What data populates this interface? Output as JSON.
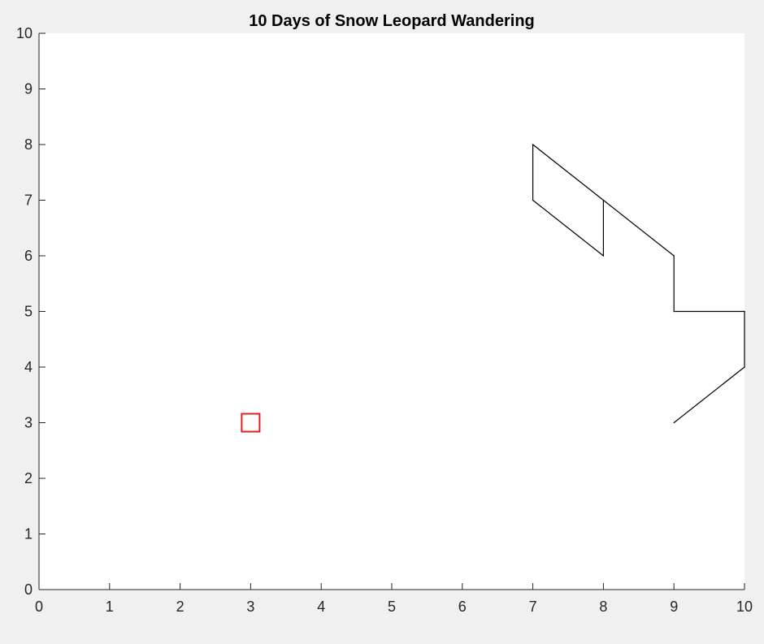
{
  "chart_data": {
    "type": "line",
    "title": "10 Days of Snow Leopard Wandering",
    "xlabel": "",
    "ylabel": "",
    "xlim": [
      0,
      10
    ],
    "ylim": [
      0,
      10
    ],
    "xticks": [
      "0",
      "1",
      "2",
      "3",
      "4",
      "5",
      "6",
      "7",
      "8",
      "9",
      "10"
    ],
    "yticks": [
      "0",
      "1",
      "2",
      "3",
      "4",
      "5",
      "6",
      "7",
      "8",
      "9",
      "10"
    ],
    "grid": false,
    "legend": "none",
    "series": [
      {
        "color": "#000000",
        "marker": "none",
        "points": [
          {
            "x": 9,
            "y": 3
          },
          {
            "x": 10,
            "y": 4
          },
          {
            "x": 10,
            "y": 5
          },
          {
            "x": 9,
            "y": 5
          },
          {
            "x": 9,
            "y": 6
          },
          {
            "x": 8,
            "y": 7
          },
          {
            "x": 8,
            "y": 6
          },
          {
            "x": 7,
            "y": 7
          },
          {
            "x": 7,
            "y": 8
          },
          {
            "x": 8,
            "y": 7
          }
        ]
      },
      {
        "color": "#e02020",
        "marker": "square",
        "points": [
          {
            "x": 3,
            "y": 3
          }
        ]
      }
    ],
    "colors": {
      "figure_background": "#f0f0f0",
      "axes_background": "#ffffff",
      "axis_color": "#262626"
    }
  }
}
